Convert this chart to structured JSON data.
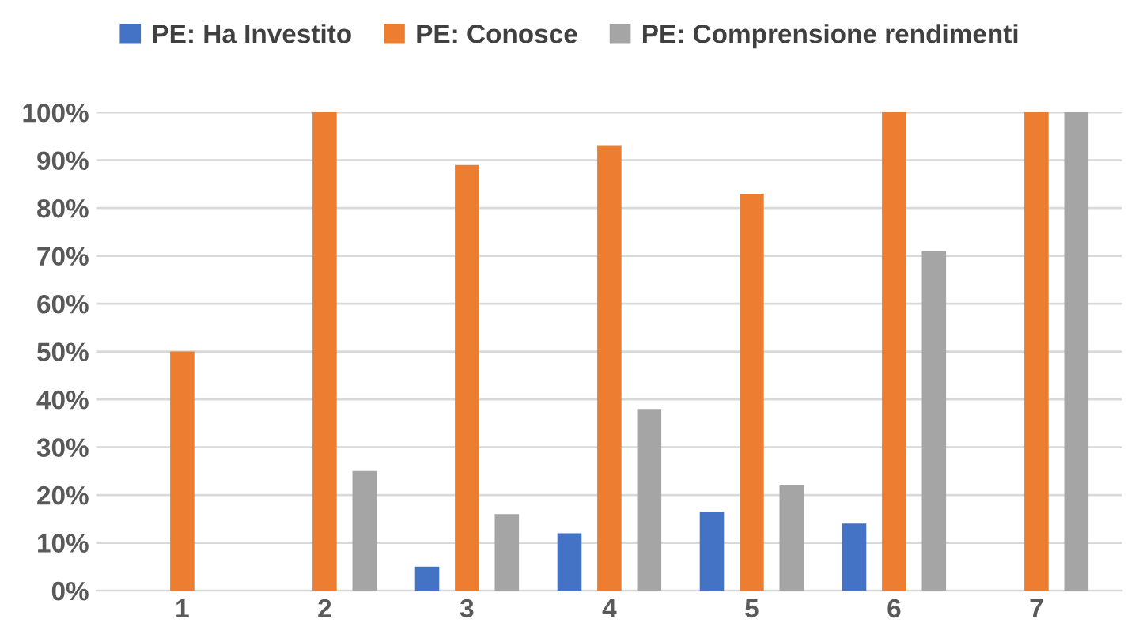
{
  "chart_data": {
    "type": "bar",
    "categories": [
      "1",
      "2",
      "3",
      "4",
      "5",
      "6",
      "7"
    ],
    "series": [
      {
        "name": "PE: Ha Investito",
        "color": "#4472c4",
        "values": [
          0,
          0,
          5,
          12,
          16.5,
          14,
          0
        ]
      },
      {
        "name": "PE: Conosce",
        "color": "#ed7d31",
        "values": [
          50,
          100,
          89,
          93,
          83,
          100,
          100
        ]
      },
      {
        "name": "PE: Comprensione rendimenti",
        "color": "#a5a5a5",
        "values": [
          0,
          25,
          16,
          38,
          22,
          71,
          100
        ]
      }
    ],
    "ylim": [
      0,
      100
    ],
    "yticks": [
      {
        "value": 0,
        "label": "0%"
      },
      {
        "value": 10,
        "label": "10%"
      },
      {
        "value": 20,
        "label": "20%"
      },
      {
        "value": 30,
        "label": "30%"
      },
      {
        "value": 40,
        "label": "40%"
      },
      {
        "value": 50,
        "label": "50%"
      },
      {
        "value": 60,
        "label": "60%"
      },
      {
        "value": 70,
        "label": "70%"
      },
      {
        "value": 80,
        "label": "80%"
      },
      {
        "value": 90,
        "label": "90%"
      },
      {
        "value": 100,
        "label": "100%"
      }
    ],
    "grid": "y",
    "legend": "top"
  }
}
